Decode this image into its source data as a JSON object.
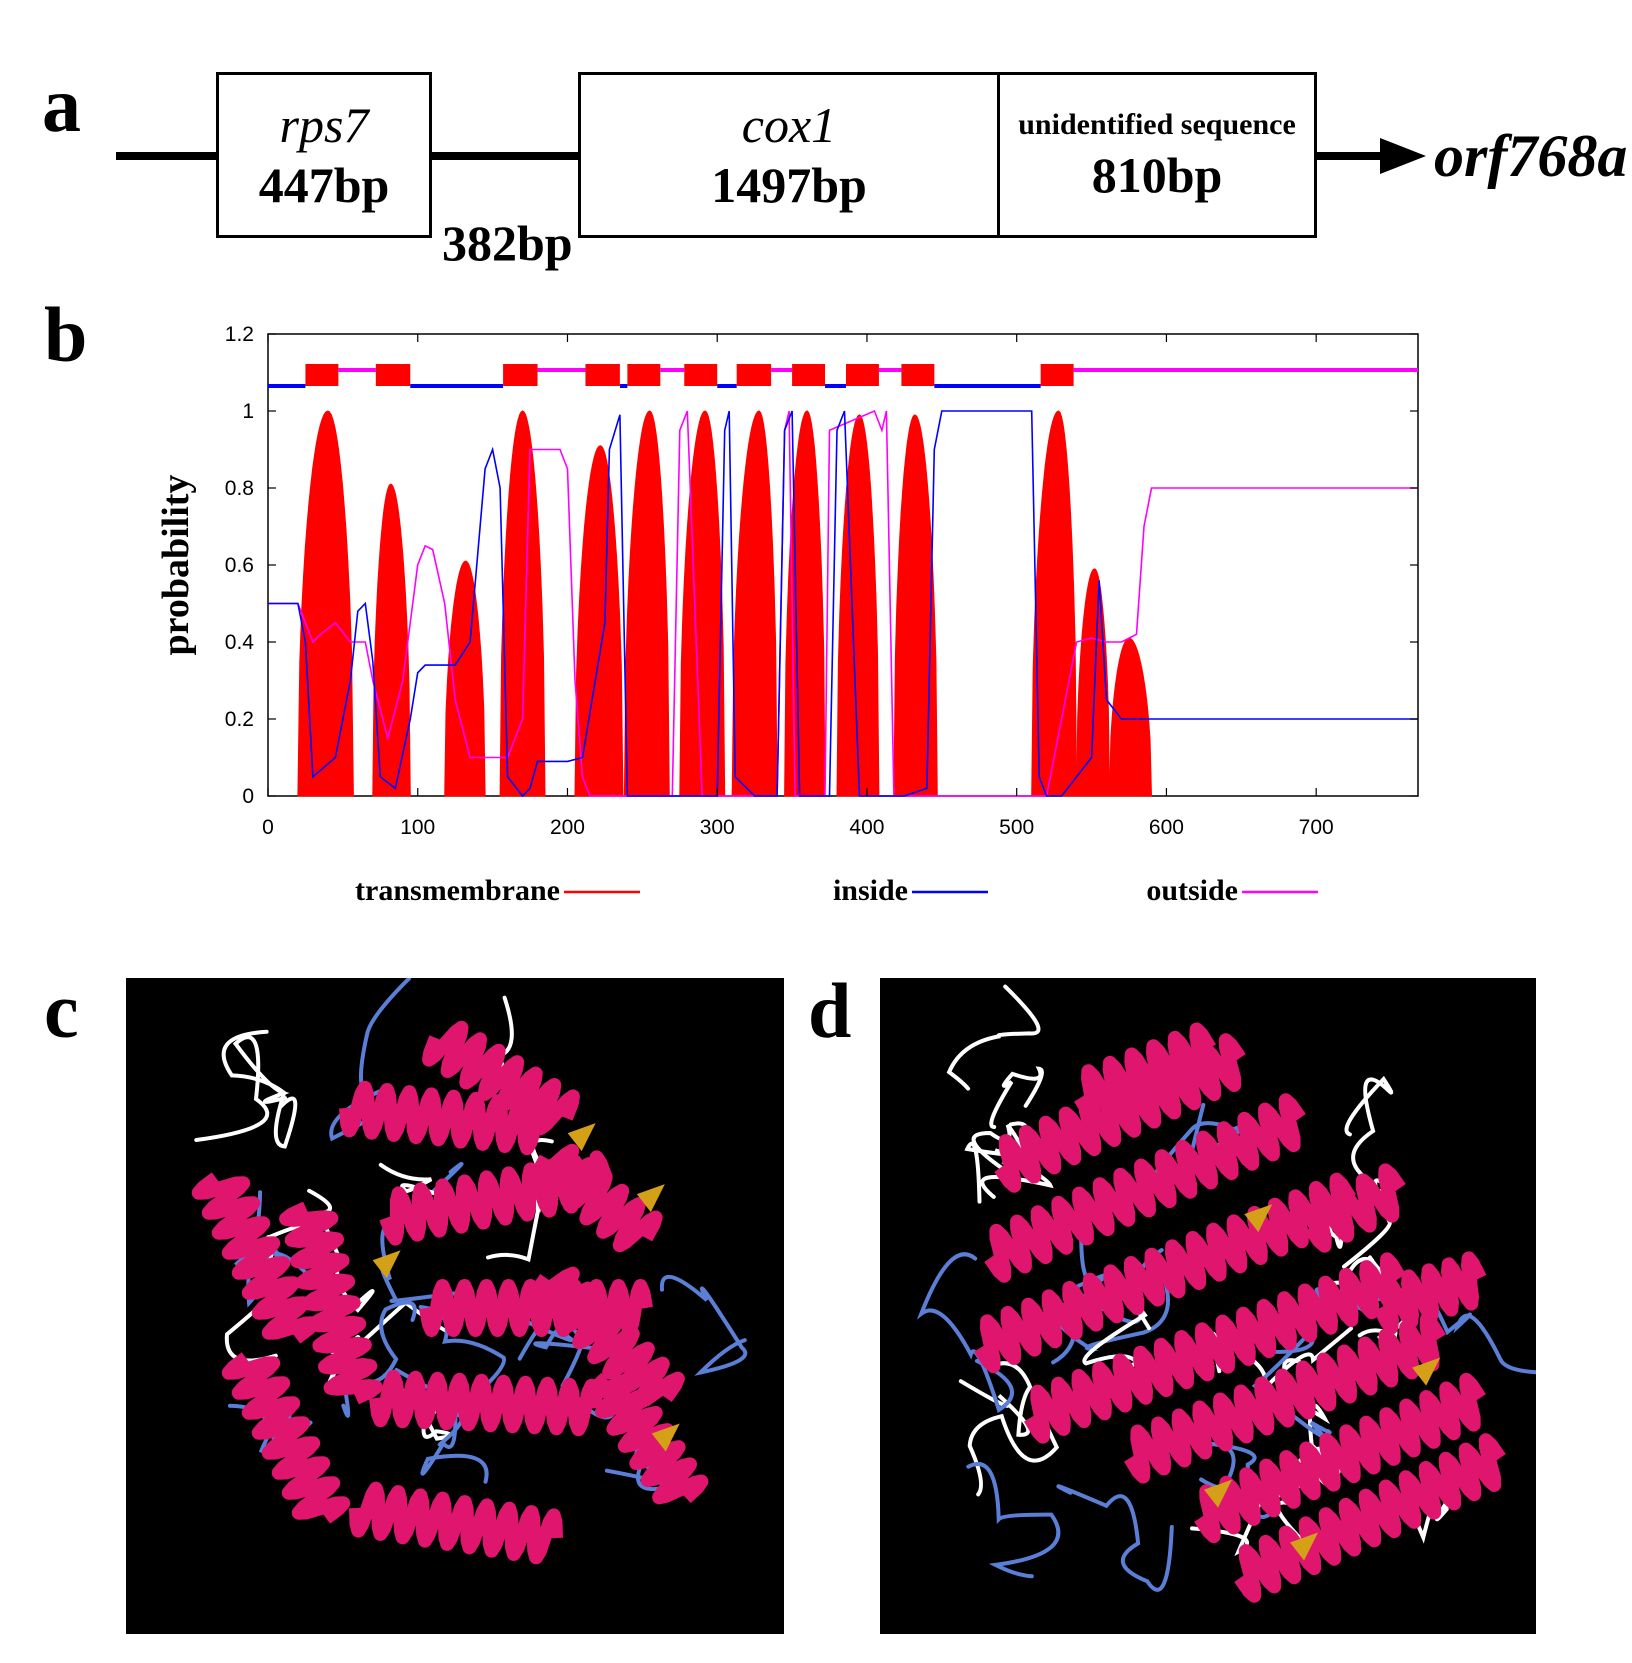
{
  "panel_labels": {
    "a": "a",
    "b": "b",
    "c": "c",
    "d": "d"
  },
  "gene_map": {
    "rps7": {
      "name": "rps7",
      "size": "447bp"
    },
    "spacer": {
      "size": "382bp"
    },
    "cox1": {
      "name": "cox1",
      "size": "1497bp"
    },
    "unidentified": {
      "name": "unidentified sequence",
      "size": "810bp"
    },
    "orf": "orf768a"
  },
  "chart_data": {
    "type": "area",
    "ylabel": "probability",
    "xlabel": "",
    "xlim": [
      0,
      768
    ],
    "ylim": [
      0,
      1.2
    ],
    "x_ticks": [
      0,
      100,
      200,
      300,
      400,
      500,
      600,
      700
    ],
    "y_ticks": [
      0,
      0.2,
      0.4,
      0.6,
      0.8,
      1,
      1.2
    ],
    "y_tick_labels": [
      "0",
      "0.2",
      "0.4",
      "0.6",
      "0.8",
      "1",
      "1.2"
    ],
    "grid": false,
    "legend_position": "bottom",
    "legend": [
      {
        "name": "transmembrane",
        "color": "#ff0000"
      },
      {
        "name": "inside",
        "color": "#0000ff"
      },
      {
        "name": "outside",
        "color": "#ff00ff"
      }
    ],
    "transmembrane_peaks": [
      {
        "start": 20,
        "peak": 40,
        "end": 57,
        "height": 1.0
      },
      {
        "start": 70,
        "peak": 82,
        "end": 95,
        "height": 0.81
      },
      {
        "start": 118,
        "peak": 132,
        "end": 145,
        "height": 0.61
      },
      {
        "start": 155,
        "peak": 170,
        "end": 185,
        "height": 1.0
      },
      {
        "start": 205,
        "peak": 222,
        "end": 237,
        "height": 0.91
      },
      {
        "start": 238,
        "peak": 255,
        "end": 268,
        "height": 1.0
      },
      {
        "start": 275,
        "peak": 292,
        "end": 305,
        "height": 1.0
      },
      {
        "start": 310,
        "peak": 328,
        "end": 340,
        "height": 1.0
      },
      {
        "start": 345,
        "peak": 360,
        "end": 372,
        "height": 1.0
      },
      {
        "start": 380,
        "peak": 395,
        "end": 408,
        "height": 0.99
      },
      {
        "start": 418,
        "peak": 432,
        "end": 447,
        "height": 0.99
      },
      {
        "start": 510,
        "peak": 528,
        "end": 540,
        "height": 1.0
      },
      {
        "start": 540,
        "peak": 552,
        "end": 562,
        "height": 0.59
      },
      {
        "start": 562,
        "peak": 575,
        "end": 590,
        "height": 0.41
      }
    ],
    "inside_series": {
      "x": [
        0,
        20,
        25,
        30,
        45,
        55,
        60,
        65,
        70,
        75,
        85,
        95,
        100,
        105,
        110,
        125,
        135,
        145,
        150,
        155,
        160,
        170,
        175,
        180,
        200,
        210,
        225,
        228,
        235,
        240,
        300,
        305,
        308,
        312,
        325,
        340,
        345,
        350,
        355,
        375,
        380,
        385,
        395,
        420,
        425,
        440,
        445,
        450,
        480,
        510,
        515,
        520,
        530,
        550,
        555,
        560,
        570,
        580,
        590,
        600,
        700,
        768
      ],
      "y": [
        0.5,
        0.5,
        0.4,
        0.05,
        0.1,
        0.3,
        0.48,
        0.5,
        0.35,
        0.05,
        0.02,
        0.2,
        0.32,
        0.34,
        0.34,
        0.34,
        0.4,
        0.85,
        0.9,
        0.8,
        0.05,
        0.0,
        0.02,
        0.09,
        0.09,
        0.1,
        0.45,
        0.9,
        0.99,
        0.0,
        0.0,
        0.95,
        1.0,
        0.05,
        0.0,
        0.0,
        0.95,
        1.0,
        0.0,
        0.0,
        0.95,
        1.0,
        0.0,
        0.0,
        0.0,
        0.02,
        0.9,
        1.0,
        1.0,
        1.0,
        0.05,
        0.0,
        0.0,
        0.1,
        0.56,
        0.25,
        0.2,
        0.2,
        0.2,
        0.2,
        0.2,
        0.2
      ]
    },
    "outside_series": {
      "x": [
        0,
        20,
        25,
        30,
        35,
        45,
        55,
        65,
        70,
        80,
        90,
        100,
        105,
        110,
        118,
        125,
        135,
        145,
        150,
        160,
        170,
        175,
        180,
        185,
        195,
        200,
        205,
        210,
        215,
        225,
        235,
        270,
        275,
        280,
        290,
        305,
        310,
        340,
        345,
        348,
        352,
        372,
        375,
        405,
        410,
        413,
        418,
        445,
        450,
        520,
        530,
        540,
        550,
        560,
        570,
        580,
        585,
        590,
        600,
        700,
        768
      ],
      "y": [
        0.5,
        0.5,
        0.45,
        0.4,
        0.42,
        0.45,
        0.4,
        0.4,
        0.3,
        0.15,
        0.3,
        0.6,
        0.65,
        0.64,
        0.5,
        0.25,
        0.1,
        0.1,
        0.1,
        0.1,
        0.2,
        0.9,
        0.9,
        0.9,
        0.9,
        0.85,
        0.3,
        0.05,
        0.0,
        0.0,
        0.0,
        0.0,
        0.95,
        1.0,
        0.0,
        0.0,
        0.0,
        0.0,
        0.95,
        1.0,
        0.0,
        0.0,
        0.95,
        1.0,
        0.95,
        1.0,
        0.0,
        0.0,
        0.0,
        0.0,
        0.2,
        0.4,
        0.41,
        0.4,
        0.4,
        0.42,
        0.7,
        0.8,
        0.8,
        0.8,
        0.8
      ]
    },
    "topology_bar": {
      "segments": [
        {
          "type": "inside",
          "start": 0,
          "end": 25
        },
        {
          "type": "tm",
          "start": 25,
          "end": 47
        },
        {
          "type": "outside",
          "start": 47,
          "end": 72
        },
        {
          "type": "tm",
          "start": 72,
          "end": 95
        },
        {
          "type": "inside",
          "start": 95,
          "end": 157
        },
        {
          "type": "tm",
          "start": 157,
          "end": 180
        },
        {
          "type": "outside",
          "start": 180,
          "end": 212
        },
        {
          "type": "tm",
          "start": 212,
          "end": 235
        },
        {
          "type": "inside",
          "start": 235,
          "end": 240
        },
        {
          "type": "tm",
          "start": 240,
          "end": 262
        },
        {
          "type": "outside",
          "start": 262,
          "end": 278
        },
        {
          "type": "tm",
          "start": 278,
          "end": 300
        },
        {
          "type": "inside",
          "start": 300,
          "end": 313
        },
        {
          "type": "tm",
          "start": 313,
          "end": 336
        },
        {
          "type": "outside",
          "start": 336,
          "end": 350
        },
        {
          "type": "tm",
          "start": 350,
          "end": 372
        },
        {
          "type": "inside",
          "start": 372,
          "end": 386
        },
        {
          "type": "tm",
          "start": 386,
          "end": 408
        },
        {
          "type": "outside",
          "start": 408,
          "end": 423
        },
        {
          "type": "tm",
          "start": 423,
          "end": 445
        },
        {
          "type": "inside",
          "start": 445,
          "end": 516
        },
        {
          "type": "tm",
          "start": 516,
          "end": 538
        },
        {
          "type": "outside",
          "start": 538,
          "end": 768
        }
      ]
    }
  },
  "colors": {
    "transmembrane": "#ff0000",
    "inside": "#0000ff",
    "outside": "#ff00ff",
    "helix": "#e0156e",
    "coil": "#ffffff",
    "turn": "#5b7fd6",
    "strand": "#d4a017",
    "structure_bg": "#000000"
  },
  "structures": {
    "c": {
      "icon": "protein-ribbon-structure-icon"
    },
    "d": {
      "icon": "protein-ribbon-structure-icon"
    }
  }
}
